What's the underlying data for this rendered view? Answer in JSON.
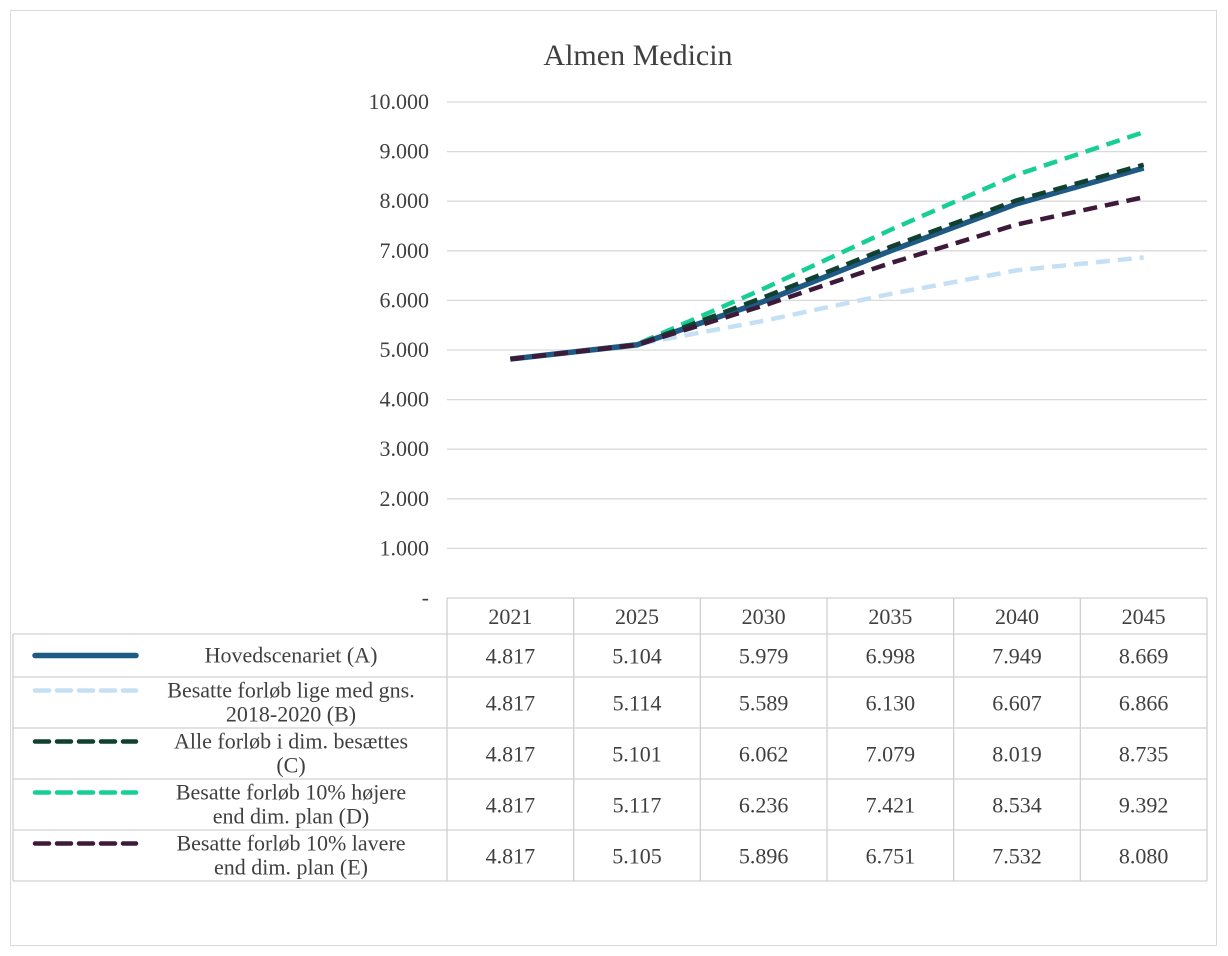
{
  "chart_data": {
    "type": "line",
    "title": "Almen Medicin",
    "categories": [
      "2021",
      "2025",
      "2030",
      "2035",
      "2040",
      "2045"
    ],
    "ylim": [
      0,
      10000
    ],
    "yticks": [
      {
        "value": 0,
        "label": "-"
      },
      {
        "value": 1000,
        "label": "1.000"
      },
      {
        "value": 2000,
        "label": "2.000"
      },
      {
        "value": 3000,
        "label": "3.000"
      },
      {
        "value": 4000,
        "label": "4.000"
      },
      {
        "value": 5000,
        "label": "5.000"
      },
      {
        "value": 6000,
        "label": "6.000"
      },
      {
        "value": 7000,
        "label": "7.000"
      },
      {
        "value": 8000,
        "label": "8.000"
      },
      {
        "value": 9000,
        "label": "9.000"
      },
      {
        "value": 10000,
        "label": "10.000"
      }
    ],
    "grid": true,
    "legend": "data-table",
    "series": [
      {
        "name": "Hovedscenariet (A)",
        "label_lines": [
          "Hovedscenariet (A)"
        ],
        "color": "#1f5a85",
        "dashed": false,
        "values": [
          4817,
          5104,
          5979,
          6998,
          7949,
          8669
        ],
        "labels": [
          "4.817",
          "5.104",
          "5.979",
          "6.998",
          "7.949",
          "8.669"
        ]
      },
      {
        "name": "Besatte forløb lige med gns. 2018-2020 (B)",
        "label_lines": [
          "Besatte forløb lige med gns.",
          "2018-2020 (B)"
        ],
        "color": "#c5e0f4",
        "dashed": true,
        "values": [
          4817,
          5114,
          5589,
          6130,
          6607,
          6866
        ],
        "labels": [
          "4.817",
          "5.114",
          "5.589",
          "6.130",
          "6.607",
          "6.866"
        ]
      },
      {
        "name": "Alle forløb i dim. besættes (C)",
        "label_lines": [
          "Alle forløb i dim. besættes",
          "(C)"
        ],
        "color": "#0f4030",
        "dashed": true,
        "values": [
          4817,
          5101,
          6062,
          7079,
          8019,
          8735
        ],
        "labels": [
          "4.817",
          "5.101",
          "6.062",
          "7.079",
          "8.019",
          "8.735"
        ]
      },
      {
        "name": "Besatte forløb 10% højere end dim. plan (D)",
        "label_lines": [
          "Besatte forløb 10% højere",
          "end dim. plan (D)"
        ],
        "color": "#17cf95",
        "dashed": true,
        "values": [
          4817,
          5117,
          6236,
          7421,
          8534,
          9392
        ],
        "labels": [
          "4.817",
          "5.117",
          "6.236",
          "7.421",
          "8.534",
          "9.392"
        ]
      },
      {
        "name": "Besatte forløb 10% lavere end dim. plan (E)",
        "label_lines": [
          "Besatte forløb 10% lavere",
          "end dim. plan (E)"
        ],
        "color": "#3e1a3a",
        "dashed": true,
        "values": [
          4817,
          5105,
          5896,
          6751,
          7532,
          8080
        ],
        "labels": [
          "4.817",
          "5.105",
          "5.896",
          "6.751",
          "7.532",
          "8.080"
        ]
      }
    ]
  }
}
